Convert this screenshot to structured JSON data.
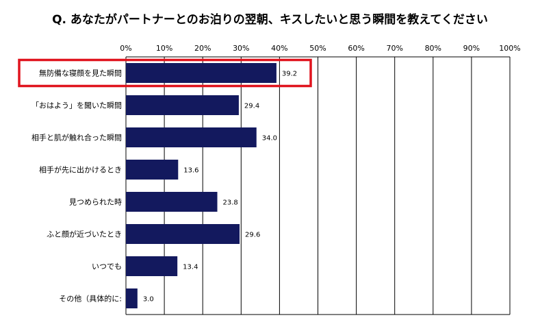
{
  "chart_data": {
    "type": "bar",
    "orientation": "horizontal",
    "title": "Q. あなたがパートナーとのお泊りの翌朝、キスしたいと思う瞬間を教えてください",
    "categories": [
      "無防備な寝顔を見た瞬間",
      "「おはよう」を聞いた瞬間",
      "相手と肌が触れ合った瞬間",
      "相手が先に出かけるとき",
      "見つめられた時",
      "ふと顔が近づいたとき",
      "いつでも",
      "その他（具体的に:"
    ],
    "values": [
      39.2,
      29.4,
      34.0,
      13.6,
      23.8,
      29.6,
      13.4,
      3.0
    ],
    "value_labels": [
      "39.2",
      "29.4",
      "34.0",
      "13.6",
      "23.8",
      "29.6",
      "13.4",
      "3.0"
    ],
    "xlim": [
      0,
      100
    ],
    "x_ticks": [
      "0%",
      "10%",
      "20%",
      "30%",
      "40%",
      "50%",
      "60%",
      "70%",
      "80%",
      "90%",
      "100%"
    ],
    "grid": true,
    "highlighted_category": "無防備な寝顔を見た瞬間",
    "colors": {
      "bar": "#13195e",
      "highlight_box": "#e0141e",
      "grid": "#000000"
    }
  }
}
